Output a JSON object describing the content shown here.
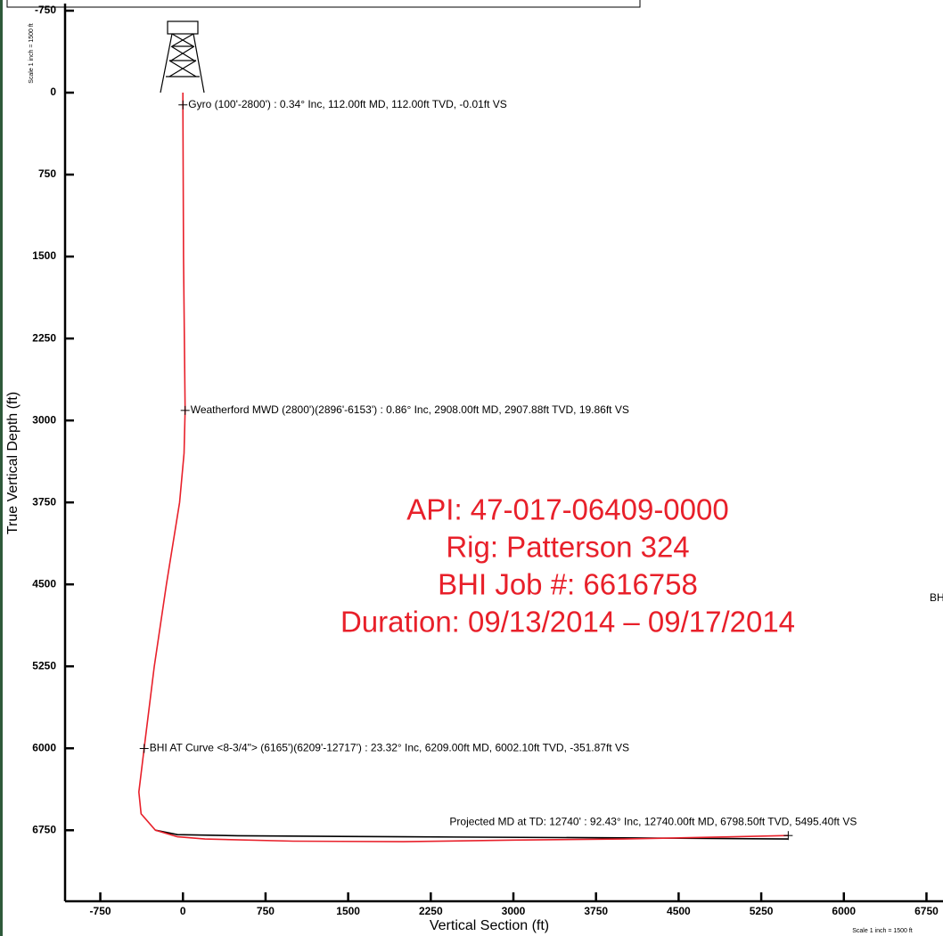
{
  "chart_data": {
    "type": "line",
    "xlabel": "Vertical Section (ft)",
    "ylabel": "True Vertical Depth (ft)",
    "xlim": [
      -1070,
      6900
    ],
    "ylim": [
      -750,
      7400
    ],
    "y_inverted": true,
    "xticks": [
      -750,
      0,
      750,
      1500,
      2250,
      3000,
      3750,
      4500,
      5250,
      6000,
      6750
    ],
    "yticks": [
      -750,
      0,
      750,
      1500,
      2250,
      3000,
      3750,
      4500,
      5250,
      6000,
      6750
    ],
    "series": [
      {
        "color": "#e8202a",
        "x": [
          0,
          0,
          5,
          20,
          10,
          -30,
          -150,
          -260,
          -352,
          -400,
          -380,
          -250,
          -50,
          200,
          1000,
          2000,
          3000,
          4000,
          5000,
          5495
        ],
        "values": [
          0,
          112,
          1500,
          2908,
          3300,
          3750,
          4500,
          5250,
          6002,
          6400,
          6600,
          6750,
          6810,
          6830,
          6850,
          6855,
          6840,
          6830,
          6810,
          6798.5
        ]
      },
      {
        "color": "#000000",
        "x": [
          -250,
          -50,
          500,
          2000,
          4000,
          5495
        ],
        "values": [
          6750,
          6790,
          6800,
          6810,
          6820,
          6830
        ]
      }
    ],
    "annotations": [
      {
        "text": "Gyro (100'-2800') : 0.34° Inc, 112.00ft MD, 112.00ft TVD, -0.01ft VS",
        "x": 0,
        "y": 112
      },
      {
        "text": "Weatherford MWD (2800')(2896'-6153') : 0.86° Inc, 2908.00ft MD, 2907.88ft TVD, 19.86ft VS",
        "x": 20,
        "y": 2908
      },
      {
        "text": "BHI AT Curve <8-3/4\"> (6165')(6209'-12717') : 23.32° Inc, 6209.00ft MD, 6002.10ft TVD, -351.87ft VS",
        "x": -352,
        "y": 6002
      },
      {
        "text": "Projected MD at TD: 12740' : 92.43° Inc, 12740.00ft MD, 6798.50ft TVD, 5495.40ft VS",
        "x": 5495,
        "y": 6798.5
      }
    ],
    "stamp": [
      "API: 47-017-06409-0000",
      "Rig: Patterson 324",
      "BHI Job #: 6616758",
      "Duration: 09/13/2014 – 09/17/2014"
    ],
    "scale_note": "Scale 1 inch = 1500 ft",
    "edge_text": "BH"
  }
}
